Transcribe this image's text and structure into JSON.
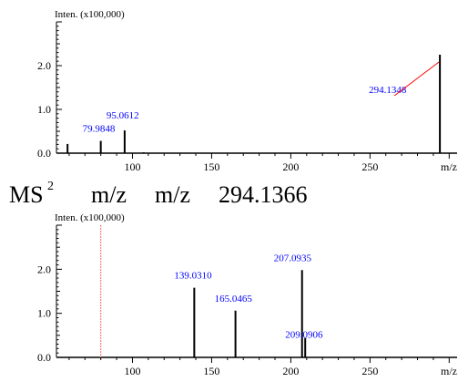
{
  "caption": {
    "ms_label": "MS",
    "ms_superscript": "2",
    "mz_a": "m/z",
    "mz_b": "m/z",
    "precursor": "294.1366"
  },
  "colors": {
    "axis": "#000000",
    "peak": "#000000",
    "peak_label": "#0000ff",
    "callout_line": "#ff0000",
    "marker_line": "#ff6666"
  },
  "chart_data": [
    {
      "type": "bar",
      "ylabel": "Inten. (x100,000)",
      "xlabel": "m/z",
      "xlim": [
        52,
        305
      ],
      "ylim": [
        0,
        3.0
      ],
      "x_ticks": [
        100,
        150,
        200,
        250
      ],
      "x_tick_labels": [
        "100",
        "150",
        "200",
        "250"
      ],
      "y_ticks": [
        0.0,
        1.0,
        2.0
      ],
      "y_tick_labels": [
        "0.0",
        "1.0",
        "2.0"
      ],
      "grid": false,
      "peaks": [
        {
          "mz": 59.0,
          "intensity": 0.21
        },
        {
          "mz": 79.9848,
          "intensity": 0.28,
          "label": "79.9848"
        },
        {
          "mz": 95.0612,
          "intensity": 0.52,
          "label": "95.0612"
        },
        {
          "mz": 107.0,
          "intensity": 0.02
        },
        {
          "mz": 294.1348,
          "intensity": 2.25,
          "label": "294.1348"
        }
      ]
    },
    {
      "type": "bar",
      "ylabel": "Inten. (x100,000)",
      "xlabel": "m/z",
      "xlim": [
        52,
        305
      ],
      "ylim": [
        0,
        3.0
      ],
      "x_ticks": [
        100,
        150,
        200,
        250
      ],
      "x_tick_labels": [
        "100",
        "150",
        "200",
        "250"
      ],
      "y_ticks": [
        0.0,
        1.0,
        2.0
      ],
      "y_tick_labels": [
        "0.0",
        "1.0",
        "2.0"
      ],
      "grid": false,
      "precursor_marker_mz": 80.0,
      "peaks": [
        {
          "mz": 139.031,
          "intensity": 1.58,
          "label": "139.0310"
        },
        {
          "mz": 165.0465,
          "intensity": 1.06,
          "label": "165.0465"
        },
        {
          "mz": 207.0935,
          "intensity": 1.98,
          "label": "207.0935"
        },
        {
          "mz": 209.0906,
          "intensity": 0.44,
          "label": "209.0906"
        }
      ]
    }
  ]
}
